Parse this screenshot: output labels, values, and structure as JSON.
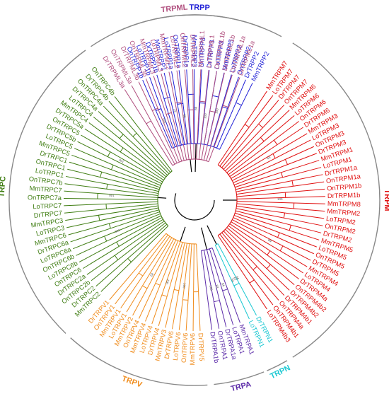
{
  "families": [
    {
      "name": "TRPP",
      "color": "#1f1fd6",
      "leaves": [
        "OnTRPP1b",
        "LoTRPP1b",
        "DrTRPP1b",
        "MmTRPP1",
        "LoTRPP1a",
        "OnTRPP1a",
        "DrTRPP1a",
        "MmTRPP3",
        "OnTRPP3",
        "DrTRPP3",
        "LoTRPP3",
        "MmTRPP5",
        "LoTRPP2",
        "OnTRPP2",
        "DrTRPP2",
        "MmTRPP2"
      ]
    },
    {
      "name": "TRPM",
      "color": "#e01010",
      "leaves": [
        "MmTRPM7",
        "LoTRPM7",
        "DrTRPM7",
        "OnTRPM7",
        "MmTRPM6",
        "LoTRPM6",
        "OnTRPM6",
        "DrTRPM6",
        "MmTRPM3",
        "LoTRPM3",
        "OnTRPM3",
        "DrTRPM3",
        "MmTRPM1",
        "LoTRPM1",
        "DrTRPM1a",
        "OnTRPM1a",
        "OnTRPM1b",
        "DrTRPM1b",
        "MmTRPM8",
        "MmTRPM2",
        "LoTRPM2",
        "OnTRPM2",
        "DrTRPM2",
        "MmTRPM5",
        "LoTRPM5",
        "OnTRPM5",
        "DrTRPM5",
        "MmTRPM4",
        "LoTRPM4",
        "DrTRPM4a",
        "OnTRPM4b2",
        "DrTRPM4b2",
        "DrTRPM4b1",
        "OnTRPM4a",
        "OnTRPM4b1",
        "LoTRPM4b3"
      ]
    },
    {
      "name": "TRPN",
      "color": "#19c7d1",
      "leaves": [
        "DrTRPN1",
        "LoTRPN1"
      ]
    },
    {
      "name": "TRPA",
      "color": "#5b2aa8",
      "leaves": [
        "MmTRPA1",
        "LoTRPA1",
        "DrTRPA1a",
        "OnTRPA1",
        "DrTRPA1b"
      ]
    },
    {
      "name": "TRPV",
      "color": "#f08c1c",
      "leaves": [
        "DrTRPV5",
        "MmTRPV6",
        "OnTRPV6",
        "LoTRPV6",
        "DrTRPV6",
        "MmTRPV3",
        "DrTRPV4",
        "LoTRPV4",
        "MmTRPV4",
        "OnTRPV4",
        "MmTRPV2",
        "LoTRPV1",
        "MmTRPV1",
        "OnTRPV1",
        "DrTRPV1"
      ]
    },
    {
      "name": "TRPC",
      "color": "#3f7d12",
      "leaves": [
        "MmTRPC2",
        "DrTRPC2",
        "OnTRPC2b",
        "DrTRPC2a",
        "OnTRPC6",
        "LoTRPC6b",
        "OnTRPC6b",
        "LoTRPC6a",
        "DrTRPC6a",
        "MmTRPC6",
        "LoTRPC3",
        "MmTRPC3",
        "DrTRPC7",
        "LoTRPC7",
        "OnTRPC7a",
        "MmTRPC7",
        "OnTRPC7b",
        "LoTRPC1",
        "OnTRPC1",
        "DrTRPC1",
        "MmTRPC5",
        "LoTRPC5",
        "DrTRPC5b",
        "OnTRPC5",
        "DrTRPC5a",
        "MmTRPC4",
        "LoTRPC4",
        "DrTRPC4a",
        "OnTRPC4a",
        "DrTRPC4b",
        "OnTRPC4b"
      ]
    },
    {
      "name": "TRPML",
      "color": "#b04e7e",
      "leaves": [
        "DrTRPML3a",
        "OnTRPML3a",
        "DrTRPML3b",
        "OnTRPML3b",
        "MmTRPML3",
        "LoTRPML3",
        "MmTRPML2",
        "LoTRPML2",
        "OnTRPML2",
        "DrTRPML2",
        "MmTRPML1",
        "LoTRPML1",
        "OnTRPML1b",
        "DrTRPML1b",
        "OnTRPML1a",
        "DrTRPML1a"
      ]
    }
  ],
  "bootstrap_values": [
    "97",
    "86",
    "100",
    "63",
    "100",
    "99",
    "94",
    "67",
    "64",
    "84",
    "83",
    "100",
    "100",
    "100",
    "83",
    "100",
    "100",
    "100",
    "100",
    "99",
    "100"
  ]
}
